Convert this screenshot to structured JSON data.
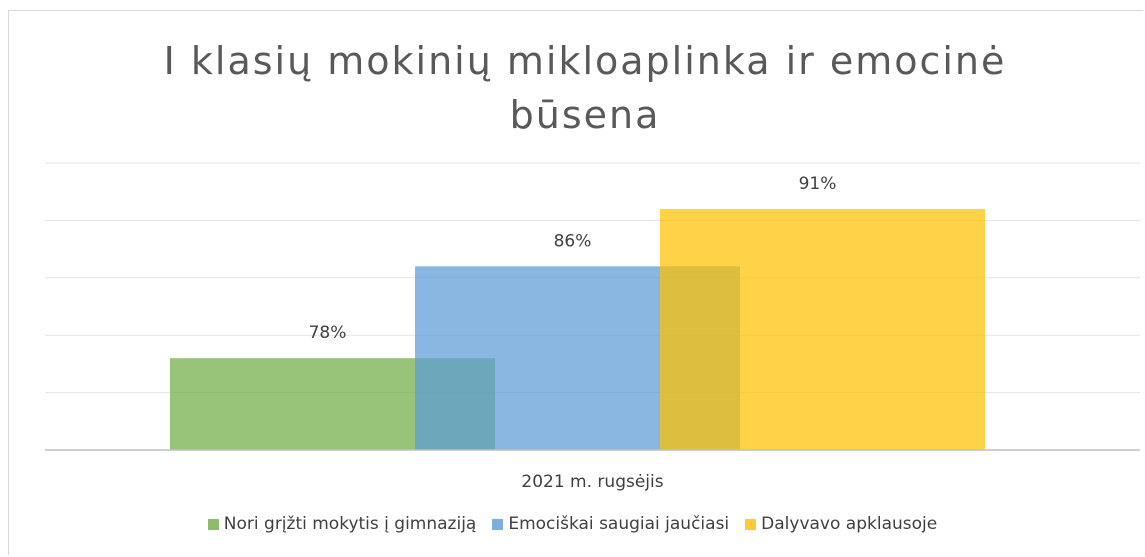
{
  "chart_data": {
    "type": "bar",
    "title": "I klasių mokinių mikloaplinka ir emocinė būsena",
    "categories": [
      "2021 m. rugsėjis"
    ],
    "series": [
      {
        "name": "Nori grįžti mokytis į gimnaziją",
        "color": "#70ad47",
        "values": [
          78
        ],
        "value_labels": [
          "78%"
        ]
      },
      {
        "name": "Emociškai saugiai jaučiasi",
        "color": "#5b9bd5",
        "values": [
          86
        ],
        "value_labels": [
          "86%"
        ]
      },
      {
        "name": "Dalyvavo apklausoje",
        "color": "#ffc000",
        "values": [
          91
        ],
        "value_labels": [
          "91%"
        ]
      }
    ],
    "ylim": [
      70,
      95
    ],
    "yticks": [
      75,
      80,
      85,
      90,
      95
    ],
    "grid": true,
    "legend": "bottom"
  }
}
